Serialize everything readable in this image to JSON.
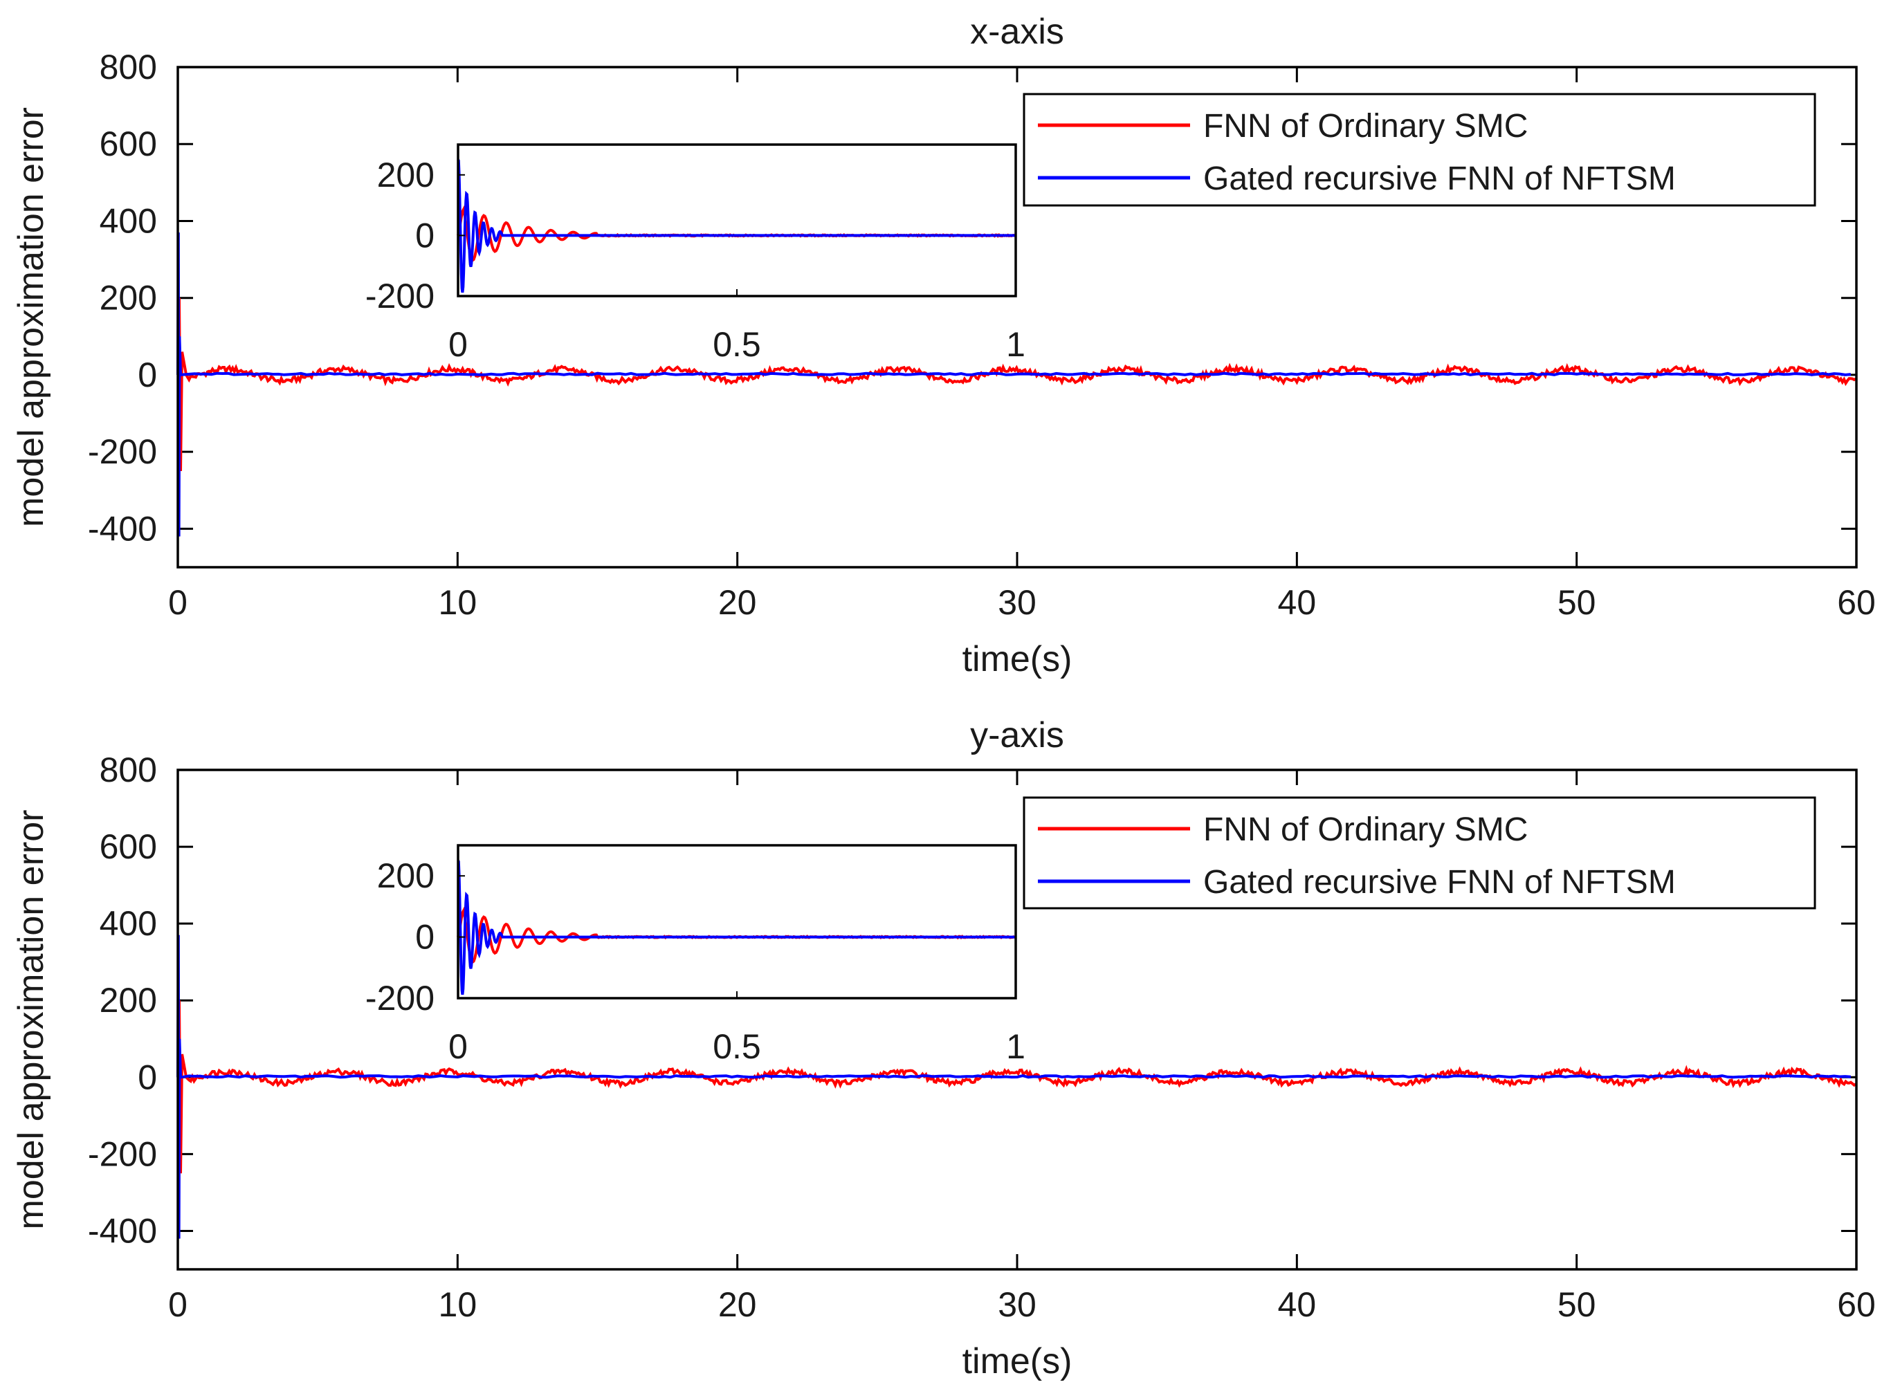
{
  "chart_data": [
    {
      "type": "line",
      "title": "x-axis",
      "xlabel": "time(s)",
      "ylabel": "model approximation error",
      "xlim": [
        0,
        60
      ],
      "ylim": [
        -500,
        800
      ],
      "xticks": [
        "0",
        "10",
        "20",
        "30",
        "40",
        "50",
        "60"
      ],
      "yticks": [
        "-400",
        "-200",
        "0",
        "200",
        "400",
        "600",
        "800"
      ],
      "legend": {
        "location": "top-right",
        "entries": [
          {
            "label": "FNN of Ordinary SMC",
            "color": "#ff0000"
          },
          {
            "label": "Gated recursive FNN of NFTSM",
            "color": "#0000ff"
          }
        ]
      },
      "series": [
        {
          "name": "FNN of Ordinary SMC",
          "color": "#ff0000",
          "description": "large transient near t=0 then periodic oscillation of about ±20",
          "x": [
            0,
            0.05,
            0.1,
            0.2,
            2,
            4,
            6,
            8,
            10,
            12,
            14,
            16,
            18,
            20,
            22,
            24,
            26,
            28,
            30,
            32,
            34,
            36,
            38,
            40,
            42,
            44,
            46,
            48,
            50,
            52,
            54,
            56,
            58,
            60
          ],
          "y": [
            0,
            200,
            -250,
            20,
            -5,
            15,
            -15,
            15,
            -15,
            15,
            -15,
            15,
            -15,
            15,
            -15,
            15,
            -15,
            15,
            -15,
            15,
            -15,
            15,
            -15,
            15,
            -15,
            15,
            -15,
            15,
            -15,
            15,
            -15,
            15,
            -15,
            15
          ]
        },
        {
          "name": "Gated recursive FNN of NFTSM",
          "color": "#0000ff",
          "description": "short transient near t=0 then near zero",
          "x": [
            0,
            0.02,
            0.04,
            0.06,
            0.1,
            1,
            10,
            20,
            30,
            40,
            50,
            60
          ],
          "y": [
            0,
            370,
            -420,
            100,
            0,
            2,
            0,
            2,
            0,
            2,
            0,
            2
          ]
        }
      ],
      "inset": {
        "xlim": [
          0,
          1
        ],
        "ylim": [
          -200,
          300
        ],
        "xticks": [
          "0",
          "0.5",
          "1"
        ],
        "yticks": [
          "-200",
          "0",
          "200"
        ],
        "series": [
          {
            "name": "FNN of Ordinary SMC",
            "color": "#ff0000",
            "description": "damped oscillation decaying by about t=0.23"
          },
          {
            "name": "Gated recursive FNN of NFTSM",
            "color": "#0000ff",
            "description": "fast damped oscillation decaying by about t=0.07"
          }
        ]
      }
    },
    {
      "type": "line",
      "title": "y-axis",
      "xlabel": "time(s)",
      "ylabel": "model approximation error",
      "xlim": [
        0,
        60
      ],
      "ylim": [
        -500,
        800
      ],
      "xticks": [
        "0",
        "10",
        "20",
        "30",
        "40",
        "50",
        "60"
      ],
      "yticks": [
        "-400",
        "-200",
        "0",
        "200",
        "400",
        "600",
        "800"
      ],
      "legend": {
        "location": "top-right",
        "entries": [
          {
            "label": "FNN of Ordinary SMC",
            "color": "#ff0000"
          },
          {
            "label": "Gated recursive FNN of NFTSM",
            "color": "#0000ff"
          }
        ]
      },
      "series": [
        {
          "name": "FNN of Ordinary SMC",
          "color": "#ff0000",
          "description": "large transient near t=0 then periodic oscillation of about ±20",
          "x": [
            0,
            0.05,
            0.1,
            0.2,
            2,
            4,
            6,
            8,
            10,
            12,
            14,
            16,
            18,
            20,
            22,
            24,
            26,
            28,
            30,
            32,
            34,
            36,
            38,
            40,
            42,
            44,
            46,
            48,
            50,
            52,
            54,
            56,
            58,
            60
          ],
          "y": [
            0,
            200,
            -250,
            20,
            -5,
            15,
            -15,
            15,
            -15,
            15,
            -15,
            15,
            -15,
            15,
            -15,
            15,
            -15,
            15,
            -15,
            15,
            -15,
            15,
            -15,
            15,
            -15,
            15,
            -15,
            15,
            -15,
            15,
            -15,
            15,
            -15,
            15
          ]
        },
        {
          "name": "Gated recursive FNN of NFTSM",
          "color": "#0000ff",
          "description": "short transient near t=0 then near zero",
          "x": [
            0,
            0.02,
            0.04,
            0.06,
            0.1,
            1,
            10,
            20,
            30,
            40,
            50,
            60
          ],
          "y": [
            0,
            370,
            -420,
            100,
            0,
            2,
            0,
            2,
            0,
            2,
            0,
            2
          ]
        }
      ],
      "inset": {
        "xlim": [
          0,
          1
        ],
        "ylim": [
          -200,
          300
        ],
        "xticks": [
          "0",
          "0.5",
          "1"
        ],
        "yticks": [
          "-200",
          "0",
          "200"
        ],
        "series": [
          {
            "name": "FNN of Ordinary SMC",
            "color": "#ff0000",
            "description": "damped oscillation decaying by about t=0.23"
          },
          {
            "name": "Gated recursive FNN of NFTSM",
            "color": "#0000ff",
            "description": "fast damped oscillation decaying by about t=0.07"
          }
        ]
      }
    }
  ]
}
